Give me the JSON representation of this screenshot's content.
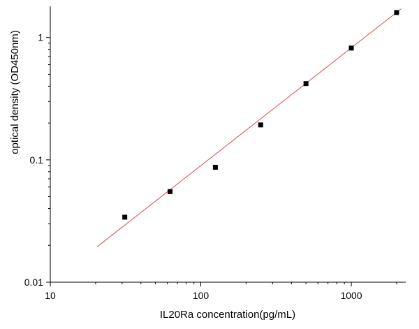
{
  "chart_data": {
    "type": "scatter",
    "title": "",
    "xlabel": "IL20Ra concentration(pg/mL)",
    "ylabel": "optical density (OD450nm)",
    "x_scale": "log",
    "y_scale": "log",
    "xlim": [
      10,
      2300
    ],
    "ylim": [
      0.01,
      1.8
    ],
    "x_ticks": [
      10,
      100,
      1000
    ],
    "x_tick_labels": [
      "10",
      "100",
      "1000"
    ],
    "y_ticks": [
      0.01,
      0.1,
      1
    ],
    "y_tick_labels": [
      "0.01",
      "0.1",
      "1"
    ],
    "grid": false,
    "legend": "none",
    "series": [
      {
        "type": "scatter",
        "marker": "square",
        "color": "#000000",
        "x": [
          31.25,
          62.5,
          125,
          250,
          500,
          1000,
          2000
        ],
        "y": [
          0.034,
          0.055,
          0.087,
          0.193,
          0.42,
          0.82,
          1.6
        ]
      },
      {
        "type": "line",
        "color": "#d94a4a",
        "x": [
          20.5,
          2150
        ],
        "y": [
          0.0195,
          1.72
        ]
      }
    ]
  }
}
